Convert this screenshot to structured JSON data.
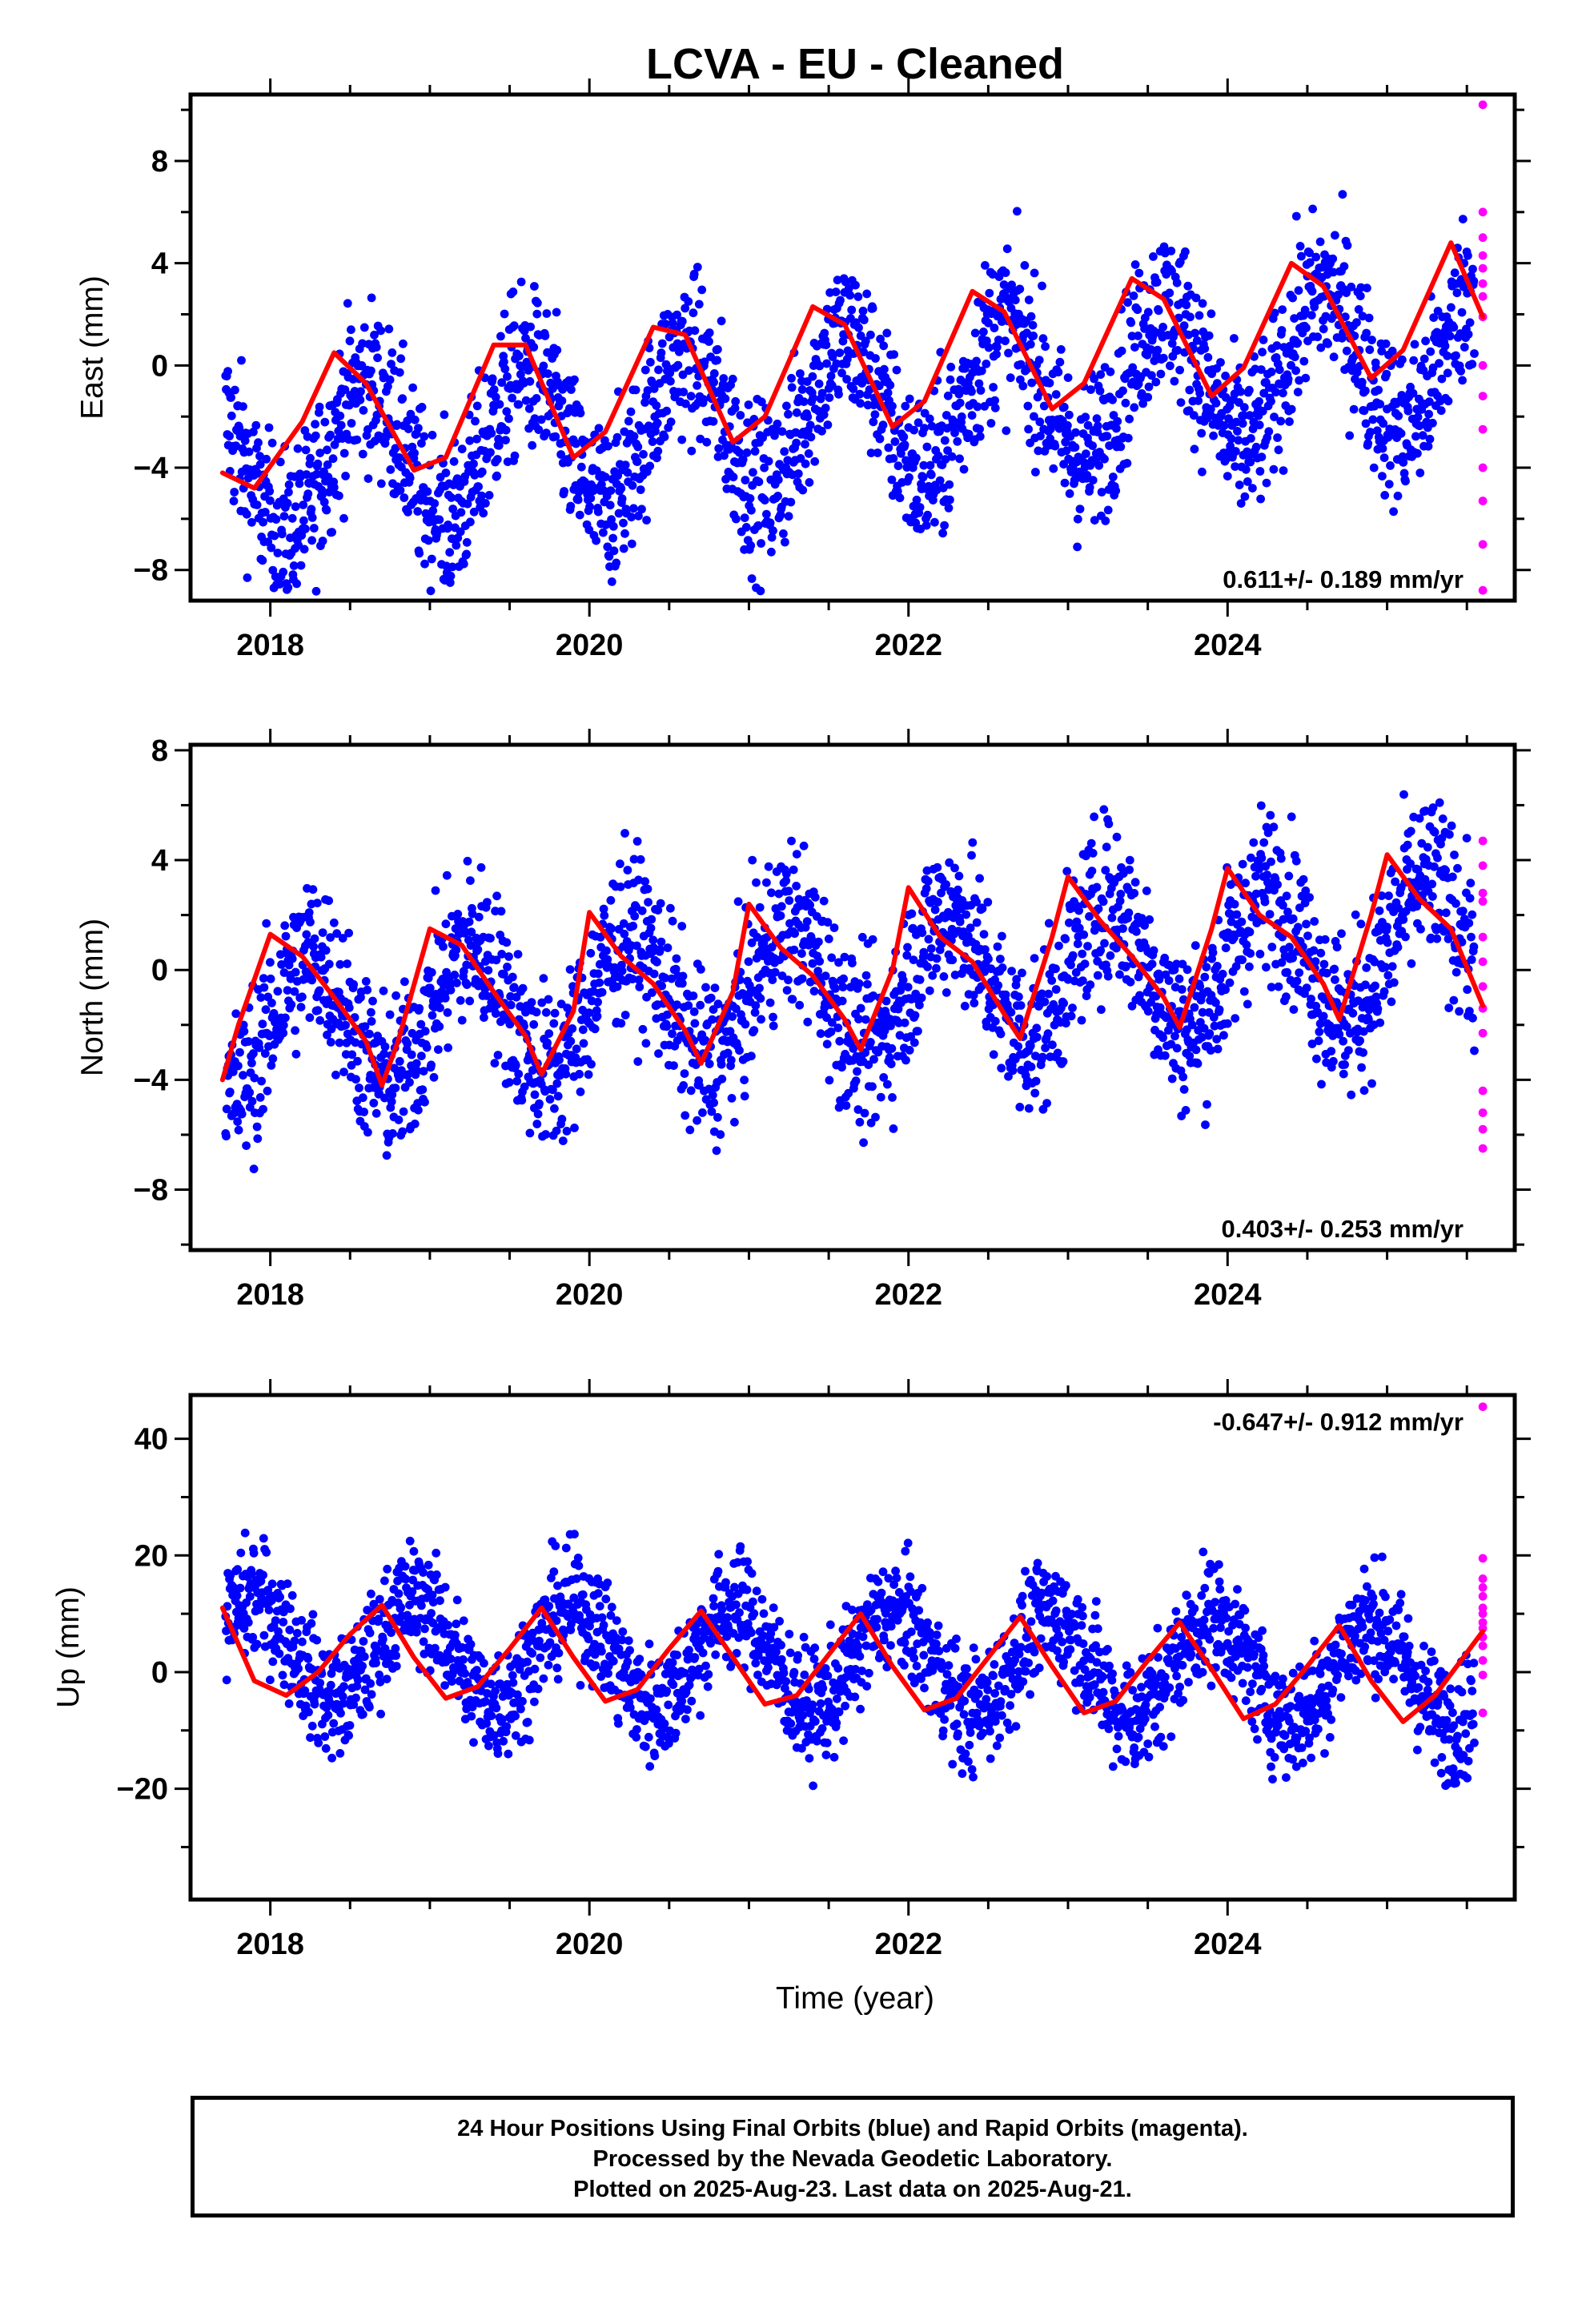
{
  "chart_data": {
    "title": "LCVA  - EU - Cleaned",
    "xlabel": "Time (year)",
    "x_range": [
      2017.5,
      2025.8
    ],
    "x_ticks": [
      2018,
      2020,
      2022,
      2024
    ],
    "x_tick_labels": [
      "2018",
      "2020",
      "2022",
      "2024"
    ],
    "colors": {
      "final": "#0000ff",
      "rapid": "#ff00ff",
      "model": "#ff0000"
    },
    "panels": [
      {
        "type": "scatter",
        "name": "east",
        "ylabel": "East (mm)",
        "ylim": [
          -9.2,
          10.6
        ],
        "y_ticks": [
          -8,
          -4,
          0,
          4,
          8
        ],
        "y_tick_labels": [
          "−8",
          "−4",
          "0",
          "4",
          "8"
        ],
        "rate": "0.611+/- 0.189 mm/yr",
        "rate_position": "bottom-right",
        "model": {
          "x": [
            2017.7,
            2017.9,
            2018.2,
            2018.4,
            2018.6,
            2018.9,
            2019.1,
            2019.4,
            2019.6,
            2019.9,
            2020.1,
            2020.4,
            2020.6,
            2020.9,
            2021.1,
            2021.4,
            2021.6,
            2021.9,
            2022.1,
            2022.4,
            2022.6,
            2022.9,
            2023.1,
            2023.4,
            2023.6,
            2023.9,
            2024.1,
            2024.4,
            2024.6,
            2024.9,
            2025.1,
            2025.4,
            2025.6
          ],
          "y": [
            -4.2,
            -4.8,
            -2.2,
            0.5,
            -0.7,
            -4.1,
            -3.6,
            0.8,
            0.8,
            -3.6,
            -2.6,
            1.5,
            1.2,
            -3.0,
            -2.0,
            2.3,
            1.6,
            -2.4,
            -1.4,
            2.9,
            2.1,
            -1.7,
            -0.7,
            3.4,
            2.6,
            -1.2,
            -0.1,
            4.0,
            3.1,
            -0.5,
            0.6,
            4.8,
            1.9
          ]
        },
        "scatter": {
          "amp": 2.8,
          "noise": 1.6,
          "trend": 0.6,
          "offset": -1.8,
          "phase": 0.35
        },
        "rapid": {
          "x": [
            2025.6,
            2025.6,
            2025.6,
            2025.6,
            2025.6,
            2025.6,
            2025.6,
            2025.6,
            2025.6,
            2025.6,
            2025.6,
            2025.6,
            2025.6,
            2025.6,
            2025.6
          ],
          "y": [
            10.2,
            6.0,
            5.0,
            4.3,
            3.8,
            3.2,
            2.7,
            1.9,
            0.0,
            -1.2,
            -2.5,
            -4.0,
            -5.3,
            -7.0,
            -8.8
          ]
        }
      },
      {
        "type": "scatter",
        "name": "north",
        "ylabel": "North (mm)",
        "ylim": [
          -10.2,
          8.2
        ],
        "y_ticks": [
          -8,
          -4,
          0,
          4,
          8
        ],
        "y_tick_labels": [
          "−8",
          "−4",
          "0",
          "4",
          "8"
        ],
        "rate": "0.403+/- 0.253 mm/yr",
        "rate_position": "bottom-right",
        "model": {
          "x": [
            2017.7,
            2017.8,
            2018.0,
            2018.2,
            2018.4,
            2018.6,
            2018.7,
            2018.8,
            2019.0,
            2019.2,
            2019.4,
            2019.6,
            2019.7,
            2019.9,
            2020.0,
            2020.2,
            2020.4,
            2020.6,
            2020.7,
            2020.9,
            2021.0,
            2021.2,
            2021.4,
            2021.6,
            2021.7,
            2021.9,
            2022.0,
            2022.2,
            2022.4,
            2022.6,
            2022.7,
            2022.9,
            2023.0,
            2023.2,
            2023.4,
            2023.6,
            2023.7,
            2023.9,
            2024.0,
            2024.2,
            2024.4,
            2024.6,
            2024.7,
            2024.9,
            2025.0,
            2025.2,
            2025.4,
            2025.6
          ],
          "y": [
            -4.0,
            -2.0,
            1.3,
            0.5,
            -1.0,
            -2.6,
            -4.2,
            -2.6,
            1.5,
            0.9,
            -0.8,
            -2.4,
            -3.8,
            -1.5,
            2.1,
            0.5,
            -0.5,
            -2.2,
            -3.4,
            -0.8,
            2.4,
            0.8,
            -0.2,
            -1.8,
            -2.9,
            0.0,
            3.0,
            1.2,
            0.3,
            -1.6,
            -2.5,
            1.2,
            3.4,
            1.8,
            0.5,
            -1.0,
            -2.1,
            1.5,
            3.7,
            2.0,
            1.2,
            -0.5,
            -1.8,
            2.0,
            4.2,
            2.6,
            1.5,
            -1.3
          ]
        },
        "scatter": {
          "amp": 2.4,
          "noise": 1.5,
          "trend": 0.4,
          "offset": -0.6,
          "phase": 0.0
        },
        "rapid": {
          "x": [
            2025.6,
            2025.6,
            2025.6,
            2025.6,
            2025.6,
            2025.6,
            2025.6,
            2025.6,
            2025.6,
            2025.6,
            2025.6,
            2025.6,
            2025.6
          ],
          "y": [
            4.7,
            3.8,
            2.8,
            2.5,
            1.2,
            0.3,
            -0.6,
            -1.4,
            -2.3,
            -4.4,
            -5.2,
            -5.8,
            -6.5
          ]
        }
      },
      {
        "type": "scatter",
        "name": "up",
        "ylabel": "Up (mm)",
        "ylim": [
          -39,
          47.5
        ],
        "y_ticks": [
          -20,
          0,
          20,
          40
        ],
        "y_tick_labels": [
          "−20",
          "0",
          "20",
          "40"
        ],
        "rate": "-0.647+/- 0.912 mm/yr",
        "rate_position": "top-right",
        "model": {
          "x": [
            2017.7,
            2017.9,
            2018.1,
            2018.3,
            2018.5,
            2018.7,
            2018.9,
            2019.1,
            2019.3,
            2019.5,
            2019.7,
            2019.9,
            2020.1,
            2020.3,
            2020.5,
            2020.7,
            2020.9,
            2021.1,
            2021.3,
            2021.5,
            2021.7,
            2021.9,
            2022.1,
            2022.3,
            2022.5,
            2022.7,
            2022.9,
            2023.1,
            2023.3,
            2023.5,
            2023.7,
            2023.9,
            2024.1,
            2024.3,
            2024.5,
            2024.7,
            2024.9,
            2025.1,
            2025.3,
            2025.6
          ],
          "y": [
            11.0,
            -1.5,
            -4.0,
            0.0,
            6.5,
            11.5,
            2.5,
            -4.5,
            -2.5,
            4.0,
            11.0,
            2.5,
            -5.0,
            -3.0,
            4.0,
            10.5,
            2.5,
            -5.5,
            -4.0,
            3.0,
            10.0,
            1.0,
            -6.5,
            -4.5,
            2.5,
            9.5,
            1.0,
            -7.0,
            -5.0,
            2.0,
            8.5,
            0.5,
            -8.0,
            -5.5,
            1.0,
            8.0,
            -1.5,
            -8.5,
            -4.0,
            7.0
          ]
        },
        "scatter": {
          "amp": 8.5,
          "noise": 5.0,
          "trend": -0.6,
          "offset": 2.0,
          "phase": 0.65
        },
        "rapid": {
          "x": [
            2025.6,
            2025.6,
            2025.6,
            2025.6,
            2025.6,
            2025.6,
            2025.6,
            2025.6,
            2025.6,
            2025.6,
            2025.6,
            2025.6,
            2025.6,
            2025.6
          ],
          "y": [
            45.5,
            19.5,
            16.0,
            14.5,
            13.0,
            11.0,
            10.0,
            8.5,
            7.5,
            6.0,
            4.5,
            2.0,
            -0.5,
            -7.0
          ]
        }
      }
    ]
  },
  "footer": {
    "line1": "24 Hour Positions Using Final Orbits (blue) and Rapid Orbits (magenta).",
    "line2": "Processed by the Nevada Geodetic Laboratory.",
    "line3": "Plotted on 2025-Aug-23. Last data on 2025-Aug-21."
  }
}
